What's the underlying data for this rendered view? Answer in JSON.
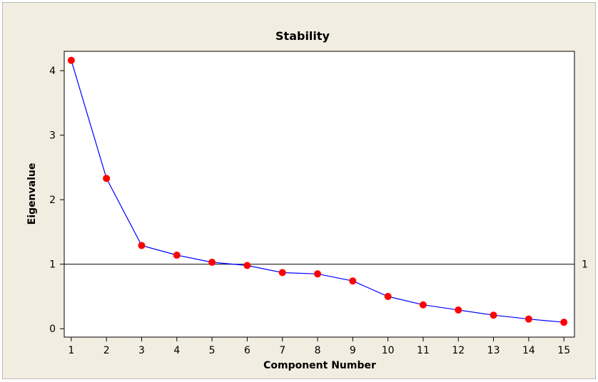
{
  "chart_data": {
    "type": "line",
    "title": "Stability",
    "xlabel": "Component Number",
    "ylabel": "Eigenvalue",
    "x": [
      1,
      2,
      3,
      4,
      5,
      6,
      7,
      8,
      9,
      10,
      11,
      12,
      13,
      14,
      15
    ],
    "series": [
      {
        "values": [
          4.16,
          2.33,
          1.29,
          1.14,
          1.03,
          0.98,
          0.87,
          0.85,
          0.74,
          0.5,
          0.37,
          0.29,
          0.21,
          0.15,
          0.1
        ]
      }
    ],
    "reference_line": {
      "y": 1,
      "label": "1"
    },
    "xlim": [
      0.8,
      15.3
    ],
    "ylim": [
      -0.13,
      4.3
    ],
    "x_ticks": [
      1,
      2,
      3,
      4,
      5,
      6,
      7,
      8,
      9,
      10,
      11,
      12,
      13,
      14,
      15
    ],
    "y_ticks": [
      0,
      1,
      2,
      3,
      4
    ],
    "grid": false,
    "colors": {
      "background": "#f1ede1",
      "plot_background": "#ffffff",
      "line": "#0000ff",
      "marker": "#ff0000",
      "reference_line": "#000000"
    }
  }
}
